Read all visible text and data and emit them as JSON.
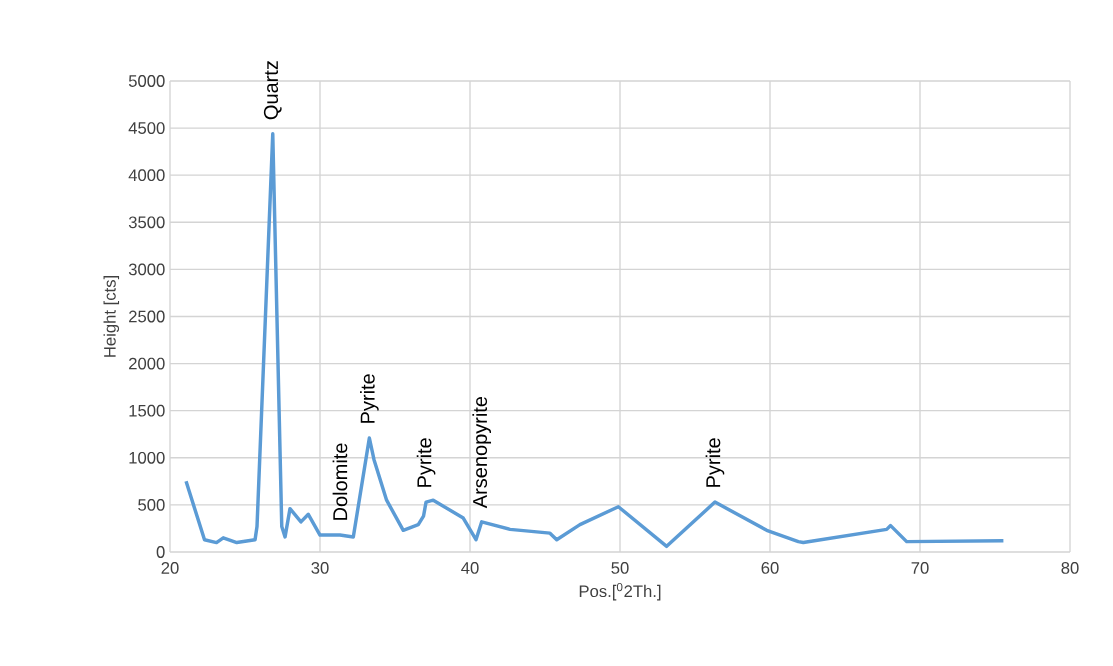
{
  "chart_data": {
    "type": "line",
    "xlabel": "Pos.[$^{0}$2Th.]",
    "ylabel": "Height [cts]",
    "xlim": [
      20,
      80
    ],
    "xticks": [
      20,
      30,
      40,
      50,
      60,
      70,
      80
    ],
    "ylim": [
      0,
      5000
    ],
    "yticks": [
      0,
      500,
      1000,
      1500,
      2000,
      2500,
      3000,
      3500,
      4000,
      4500,
      5000
    ],
    "grid": true,
    "marker": "none",
    "line_style": "solid",
    "series": [
      {
        "color": "#5b9bd5",
        "x": [
          21.07,
          22.3,
          23.1,
          23.55,
          24.45,
          25.67,
          25.8,
          26.85,
          27.45,
          27.67,
          28.0,
          28.73,
          29.22,
          30.0,
          31.33,
          32.22,
          33.29,
          33.6,
          34.44,
          35.55,
          36.55,
          36.9,
          37.07,
          37.55,
          39.55,
          40.4,
          40.78,
          42.67,
          45.33,
          45.78,
          47.33,
          49.89,
          53.11,
          56.33,
          59.78,
          61.89,
          62.22,
          67.78,
          68.04,
          69.11,
          75.56
        ],
        "values": [
          750,
          130,
          100,
          150,
          100,
          130,
          270,
          4440,
          270,
          160,
          460,
          320,
          400,
          180,
          180,
          160,
          1210,
          980,
          550,
          230,
          290,
          380,
          530,
          550,
          360,
          130,
          320,
          240,
          200,
          130,
          290,
          480,
          60,
          530,
          230,
          110,
          100,
          240,
          280,
          110,
          120
        ]
      }
    ],
    "annotations": [
      {
        "text": "Quartz",
        "x": 26.85,
        "y": 4440
      },
      {
        "text": "Dolomite",
        "x": 31.33,
        "y": 180
      },
      {
        "text": "Pyrite",
        "x": 33.29,
        "y": 1210
      },
      {
        "text": "Pyrite",
        "x": 37.07,
        "y": 530
      },
      {
        "text": "Arsenopyrite",
        "x": 40.78,
        "y": 320
      },
      {
        "text": "Pyrite",
        "x": 56.33,
        "y": 530
      }
    ]
  }
}
